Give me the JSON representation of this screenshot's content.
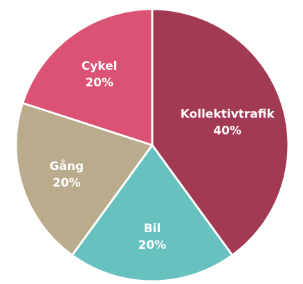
{
  "chart_data": {
    "type": "pie",
    "start": "top",
    "direction": "clockwise",
    "slices": [
      {
        "label": "Kollektivtrafik",
        "value": 40,
        "value_label": "40%",
        "color": "#A23A54"
      },
      {
        "label": "Bil",
        "value": 20,
        "value_label": "20%",
        "color": "#67C1BE"
      },
      {
        "label": "Gång",
        "value": 20,
        "value_label": "20%",
        "color": "#B9AB8B"
      },
      {
        "label": "Cykel",
        "value": 20,
        "value_label": "20%",
        "color": "#DB5274"
      }
    ]
  }
}
